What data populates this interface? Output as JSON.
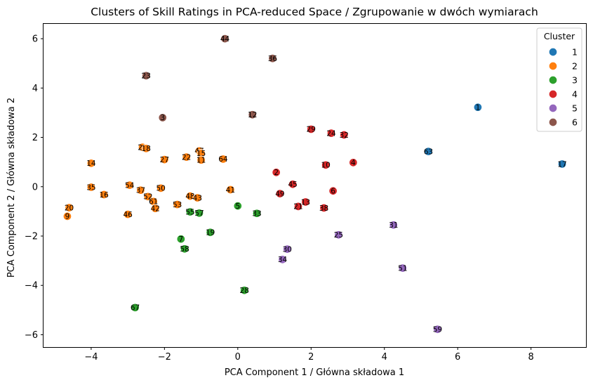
{
  "chart_data": {
    "type": "scatter",
    "title": "Clusters of Skill Ratings in PCA-reduced Space / Zgrupowanie w dwóch wymiarach",
    "xlabel": "PCA Component 1 / Główna składowa 1",
    "ylabel": "PCA Component 2 / Główna składowa 2",
    "xlim": [
      -5.3,
      9.5
    ],
    "ylim": [
      -6.5,
      6.6
    ],
    "xticks": [
      -4,
      -2,
      0,
      2,
      4,
      6,
      8
    ],
    "yticks": [
      -6,
      -4,
      -2,
      0,
      2,
      4,
      6
    ],
    "grid": false,
    "legend": {
      "title": "Cluster",
      "placement": "top-right"
    },
    "series": [
      {
        "name": "1",
        "color": "#1f77b4",
        "points": [
          {
            "x": 6.55,
            "y": 3.22,
            "label": "1"
          },
          {
            "x": 5.2,
            "y": 1.43,
            "label": "63"
          },
          {
            "x": 8.85,
            "y": 0.92,
            "label": "17"
          }
        ]
      },
      {
        "name": "2",
        "color": "#ff7f0e",
        "points": [
          {
            "x": -4.0,
            "y": 0.95,
            "label": "14"
          },
          {
            "x": -2.6,
            "y": 1.6,
            "label": "26"
          },
          {
            "x": -2.5,
            "y": 1.55,
            "label": "18"
          },
          {
            "x": -2.0,
            "y": 1.1,
            "label": "27"
          },
          {
            "x": -1.4,
            "y": 1.2,
            "label": "22"
          },
          {
            "x": -1.05,
            "y": 1.45,
            "label": "47"
          },
          {
            "x": -1.0,
            "y": 1.35,
            "label": "15"
          },
          {
            "x": -1.0,
            "y": 1.08,
            "label": "11"
          },
          {
            "x": -0.4,
            "y": 1.12,
            "label": "64"
          },
          {
            "x": -4.0,
            "y": -0.02,
            "label": "35"
          },
          {
            "x": -3.65,
            "y": -0.32,
            "label": "16"
          },
          {
            "x": -2.95,
            "y": 0.06,
            "label": "54"
          },
          {
            "x": -2.65,
            "y": -0.14,
            "label": "37"
          },
          {
            "x": -2.1,
            "y": -0.06,
            "label": "50"
          },
          {
            "x": -2.45,
            "y": -0.4,
            "label": "52"
          },
          {
            "x": -2.3,
            "y": -0.6,
            "label": "61"
          },
          {
            "x": -2.25,
            "y": -0.88,
            "label": "42"
          },
          {
            "x": -1.65,
            "y": -0.72,
            "label": "53"
          },
          {
            "x": -1.3,
            "y": -0.38,
            "label": "48"
          },
          {
            "x": -1.1,
            "y": -0.45,
            "label": "43"
          },
          {
            "x": -0.2,
            "y": -0.12,
            "label": "41"
          },
          {
            "x": -4.6,
            "y": -0.85,
            "label": "20"
          },
          {
            "x": -4.65,
            "y": -1.2,
            "label": "9"
          },
          {
            "x": -3.0,
            "y": -1.12,
            "label": "46"
          }
        ]
      },
      {
        "name": "3",
        "color": "#2ca02c",
        "points": [
          {
            "x": 0.0,
            "y": -0.78,
            "label": "5"
          },
          {
            "x": 0.52,
            "y": -1.08,
            "label": "33"
          },
          {
            "x": -1.3,
            "y": -1.02,
            "label": "55"
          },
          {
            "x": -1.05,
            "y": -1.07,
            "label": "57"
          },
          {
            "x": -0.75,
            "y": -1.85,
            "label": "19"
          },
          {
            "x": -1.55,
            "y": -2.12,
            "label": "7"
          },
          {
            "x": -1.45,
            "y": -2.52,
            "label": "58"
          },
          {
            "x": 0.18,
            "y": -4.2,
            "label": "28"
          },
          {
            "x": -2.8,
            "y": -4.9,
            "label": "67"
          }
        ]
      },
      {
        "name": "4",
        "color": "#d62728",
        "points": [
          {
            "x": 2.0,
            "y": 2.33,
            "label": "29"
          },
          {
            "x": 2.55,
            "y": 2.17,
            "label": "24"
          },
          {
            "x": 2.9,
            "y": 2.1,
            "label": "32"
          },
          {
            "x": 2.4,
            "y": 0.88,
            "label": "10"
          },
          {
            "x": 3.15,
            "y": 0.98,
            "label": "4"
          },
          {
            "x": 1.05,
            "y": 0.58,
            "label": "2"
          },
          {
            "x": 1.5,
            "y": 0.1,
            "label": "45"
          },
          {
            "x": 2.6,
            "y": -0.17,
            "label": "6"
          },
          {
            "x": 1.15,
            "y": -0.28,
            "label": "49"
          },
          {
            "x": 1.85,
            "y": -0.62,
            "label": "13"
          },
          {
            "x": 1.65,
            "y": -0.8,
            "label": "21"
          },
          {
            "x": 2.35,
            "y": -0.86,
            "label": "38"
          }
        ]
      },
      {
        "name": "5",
        "color": "#9467bd",
        "points": [
          {
            "x": 4.25,
            "y": -1.55,
            "label": "31"
          },
          {
            "x": 2.75,
            "y": -1.95,
            "label": "25"
          },
          {
            "x": 1.35,
            "y": -2.53,
            "label": "30"
          },
          {
            "x": 1.22,
            "y": -2.95,
            "label": "34"
          },
          {
            "x": 4.5,
            "y": -3.3,
            "label": "51"
          },
          {
            "x": 5.45,
            "y": -5.78,
            "label": "59"
          }
        ]
      },
      {
        "name": "6",
        "color": "#8c564b",
        "points": [
          {
            "x": -0.35,
            "y": 6.0,
            "label": "44"
          },
          {
            "x": 0.95,
            "y": 5.2,
            "label": "36"
          },
          {
            "x": -2.5,
            "y": 4.5,
            "label": "23"
          },
          {
            "x": -2.05,
            "y": 2.8,
            "label": "3"
          },
          {
            "x": 0.4,
            "y": 2.92,
            "label": "12"
          }
        ]
      }
    ]
  }
}
